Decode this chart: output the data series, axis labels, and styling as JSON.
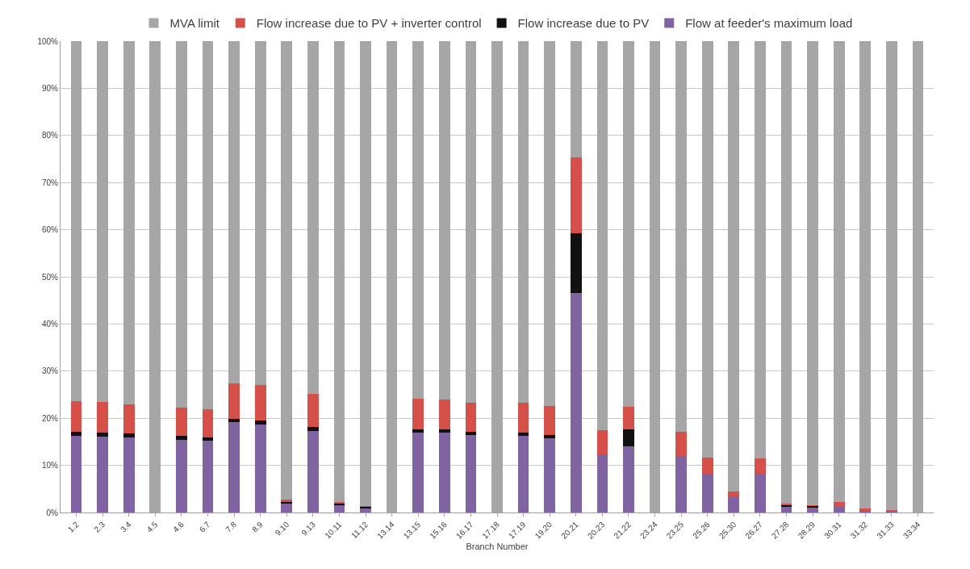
{
  "chart_data": {
    "type": "bar",
    "stacked": true,
    "xlabel": "Branch Number",
    "categories": [
      "1.2",
      "2.3",
      "3.4",
      "4.5",
      "4.6",
      "6.7",
      "7.8",
      "8.9",
      "9.10",
      "9.13",
      "10.11",
      "11.12",
      "13.14",
      "13.15",
      "15.16",
      "16.17",
      "17.18",
      "17.19",
      "19.20",
      "20.21",
      "20.23",
      "21.22",
      "23.24",
      "23.25",
      "25.26",
      "25.30",
      "26.27",
      "27.28",
      "28.29",
      "30.31",
      "31.32",
      "31.33",
      "33.34"
    ],
    "series": [
      {
        "name": "Flow at feeder's maximum load",
        "color": "#8064a2",
        "values": [
          16.3,
          16.1,
          16.0,
          0,
          15.4,
          15.2,
          19.2,
          18.7,
          1.9,
          17.3,
          1.6,
          0.9,
          0,
          16.9,
          16.9,
          16.4,
          0,
          16.3,
          15.8,
          46.6,
          12.3,
          14.0,
          0,
          12.0,
          8.3,
          3.3,
          8.2,
          1.2,
          1.0,
          1.3,
          0.3,
          0.2,
          0
        ]
      },
      {
        "name": "Flow increase due to PV",
        "color": "#111111",
        "values": [
          0.9,
          0.9,
          0.7,
          0,
          0.8,
          0.7,
          0.7,
          0.9,
          0.4,
          0.8,
          0.2,
          0.3,
          0,
          0.7,
          0.7,
          0.7,
          0,
          0.7,
          0.7,
          12.7,
          0,
          3.6,
          0,
          0,
          0,
          0,
          0,
          0.4,
          0.4,
          0,
          0,
          0,
          0
        ]
      },
      {
        "name": "Flow increase due to PV + inverter control",
        "color": "#d6504a",
        "values": [
          6.4,
          6.4,
          6.3,
          0,
          6.1,
          6.0,
          7.5,
          7.5,
          0.5,
          7.1,
          0.4,
          0.1,
          0,
          6.6,
          6.4,
          6.2,
          0,
          6.3,
          6.1,
          16.0,
          5.2,
          4.8,
          0,
          5.2,
          3.3,
          1.1,
          3.3,
          0.3,
          0.2,
          1.0,
          0.5,
          0.4,
          0
        ]
      },
      {
        "name": "MVA limit",
        "color": "#a6a6a6",
        "values": [
          76.4,
          76.6,
          77.0,
          100,
          77.7,
          78.1,
          72.6,
          72.9,
          97.2,
          74.8,
          97.8,
          98.7,
          100,
          75.8,
          76.0,
          76.7,
          100,
          76.7,
          77.4,
          24.7,
          82.5,
          77.6,
          100,
          82.8,
          88.4,
          95.6,
          88.5,
          98.1,
          98.4,
          97.7,
          99.2,
          99.4,
          100
        ]
      }
    ],
    "ylim": [
      0,
      100
    ],
    "yticks": [
      {
        "value": 0,
        "label": "0%"
      },
      {
        "value": 10,
        "label": "10%"
      },
      {
        "value": 20,
        "label": "20%"
      },
      {
        "value": 30,
        "label": "30%"
      },
      {
        "value": 40,
        "label": "40%"
      },
      {
        "value": 50,
        "label": "50%"
      },
      {
        "value": 60,
        "label": "60%"
      },
      {
        "value": 70,
        "label": "70%"
      },
      {
        "value": 80,
        "label": "80%"
      },
      {
        "value": 90,
        "label": "90%"
      },
      {
        "value": 100,
        "label": "100%"
      }
    ],
    "grid": "y",
    "legend": "top"
  }
}
